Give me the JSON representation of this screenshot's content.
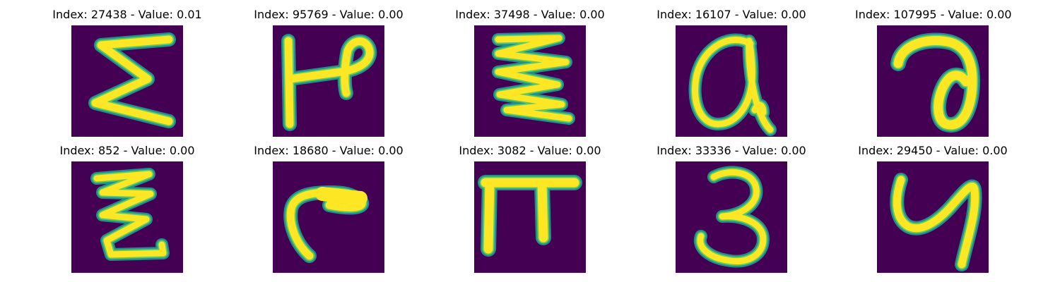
{
  "colors": {
    "background": "#440154",
    "stroke_outer": "#21918c",
    "stroke_mid": "#5ec962",
    "stroke_core": "#fde725"
  },
  "panels": [
    {
      "index_label": "Index: 27438 - Value: 0.01",
      "glyph": "sigma-like"
    },
    {
      "index_label": "Index: 95769 - Value: 0.00",
      "glyph": "h-like"
    },
    {
      "index_label": "Index: 37498 - Value: 0.00",
      "glyph": "zigzag"
    },
    {
      "index_label": "Index: 16107 - Value: 0.00",
      "glyph": "alpha-like"
    },
    {
      "index_label": "Index: 107995 - Value: 0.00",
      "glyph": "a-like"
    },
    {
      "index_label": "Index: 852 - Value: 0.00",
      "glyph": "zigzag"
    },
    {
      "index_label": "Index: 18680 - Value: 0.00",
      "glyph": "r-like"
    },
    {
      "index_label": "Index: 3082 - Value: 0.00",
      "glyph": "pi-like"
    },
    {
      "index_label": "Index: 33336 - Value: 0.00",
      "glyph": "three"
    },
    {
      "index_label": "Index: 29450 - Value: 0.00",
      "glyph": "y-like"
    }
  ]
}
